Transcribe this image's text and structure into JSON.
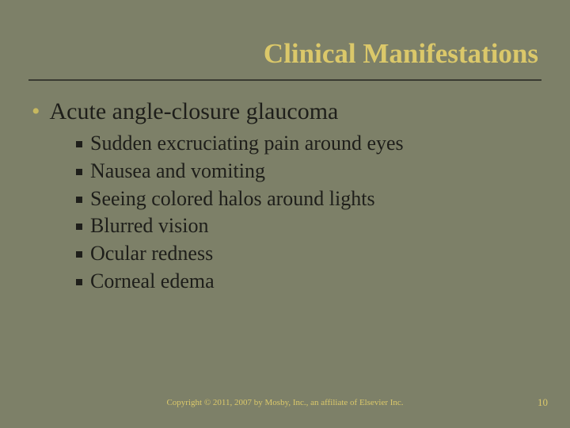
{
  "slide": {
    "background_color": "#7d8068",
    "title": "Clinical Manifestations",
    "title_color": "#dbc86a",
    "title_fontsize": 35,
    "underline_color": "#3a3b32",
    "main_bullet": {
      "marker": "•",
      "marker_color": "#c7b85f",
      "text": "Acute angle-closure glaucoma",
      "fontsize": 30,
      "text_color": "#1e1e1a"
    },
    "sub_bullets": [
      "Sudden excruciating pain around eyes",
      "Nausea and vomiting",
      "Seeing colored halos around lights",
      "Blurred vision",
      "Ocular redness",
      "Corneal edema"
    ],
    "sub_bullet_fontsize": 26,
    "sub_bullet_marker_color": "#1e1e1a",
    "copyright": "Copyright © 2011, 2007 by Mosby, Inc., an affiliate of Elsevier Inc.",
    "copyright_color": "#dbc86a",
    "copyright_fontsize": 11,
    "page_number": "10",
    "page_number_color": "#dbc86a"
  }
}
